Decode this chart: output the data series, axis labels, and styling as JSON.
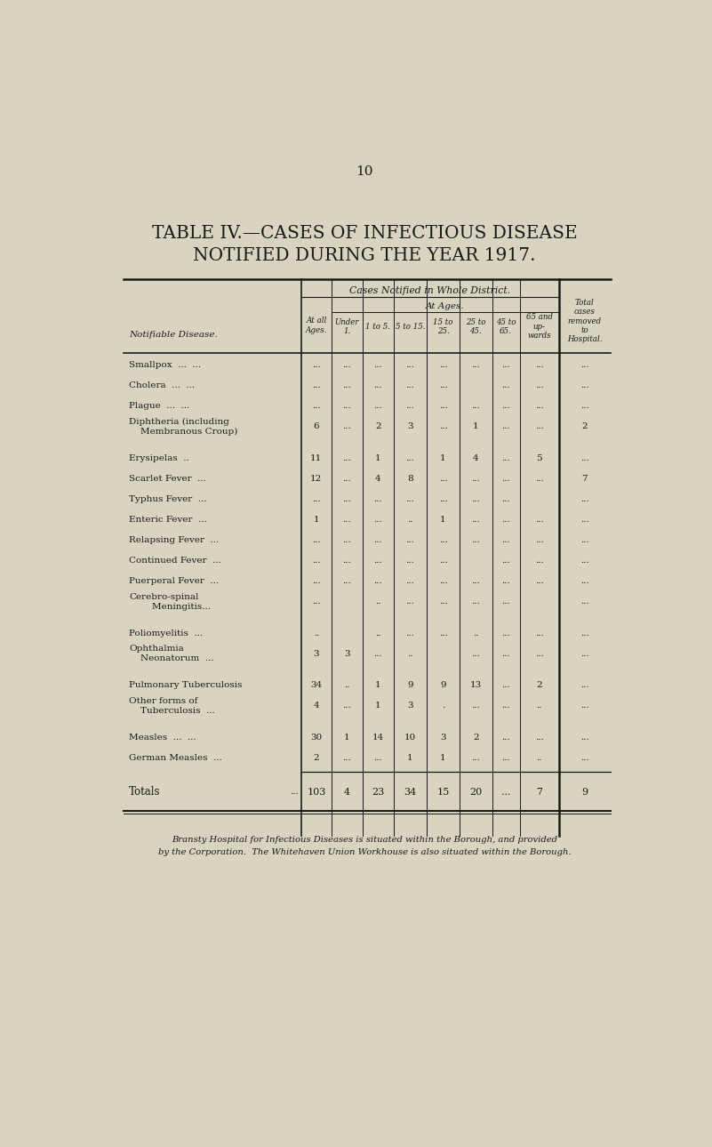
{
  "page_number": "10",
  "title_line1": "TABLE IV.—CASES OF INFECTIOUS DISEASE",
  "title_line2": "NOTIFIED DURING THE YEAR 1917.",
  "bg_color": "#d8d4c0",
  "text_color": "#1a1a1a",
  "header_group": "Cases Notified in Whole District.",
  "header_sub": "At Ages.",
  "rows": [
    [
      "Smallpox  ...  ...",
      "...",
      "...",
      "...",
      "...",
      "...",
      "...",
      "...",
      "...",
      "..."
    ],
    [
      "Cholera  ...  ...",
      "...",
      "...",
      "...",
      "...",
      "...",
      "",
      "...",
      "...",
      "..."
    ],
    [
      "Plague  ...  ...",
      "...",
      "...",
      "...",
      "...",
      "...",
      "...",
      "...",
      "...",
      "..."
    ],
    [
      "Diphtheria (including\n    Membranous Croup)",
      "6",
      "...",
      "2",
      "3",
      "...",
      "1",
      "...",
      "...",
      "2"
    ],
    [
      "Erysipelas  ..",
      "11",
      "...",
      "1",
      "...",
      "1",
      "4",
      "...",
      "5",
      "..."
    ],
    [
      "Scarlet Fever  ...",
      "12",
      "...",
      "4",
      "8",
      "...",
      "...",
      "...",
      "...",
      "7"
    ],
    [
      "Typhus Fever  ...",
      "...",
      "...",
      "...",
      "...",
      "...",
      "...",
      "...",
      "",
      "..."
    ],
    [
      "Enteric Fever  ...",
      "1",
      "...",
      "...",
      "..",
      "1",
      "...",
      "...",
      "...",
      "..."
    ],
    [
      "Relapsing Fever  ...",
      "...",
      "...",
      "...",
      "...",
      "...",
      "...",
      "...",
      "...",
      "..."
    ],
    [
      "Continued Fever  ...",
      "...",
      "...",
      "...",
      "...",
      "...",
      "",
      "...",
      "...",
      "..."
    ],
    [
      "Puerperal Fever  ...",
      "...",
      "...",
      "...",
      "...",
      "...",
      "...",
      "...",
      "...",
      "..."
    ],
    [
      "Cerebro-spinal\n        Meningitis...",
      "...",
      "",
      "..",
      "...",
      "...",
      "...",
      "...",
      "",
      "..."
    ],
    [
      "Poliomyelitis  ...",
      "..",
      "",
      "..",
      "...",
      "...",
      "..",
      "...",
      "...",
      "..."
    ],
    [
      "Ophthalmia\n    Neonatorum  ...",
      "3",
      "3",
      "...",
      "..",
      "",
      "...",
      "...",
      "...",
      "..."
    ],
    [
      "Pulmonary Tuberculosis",
      "34",
      "..",
      "1",
      "9",
      "9",
      "13",
      "...",
      "2",
      "..."
    ],
    [
      "Other forms of\n    Tuberculosis  ...",
      "4",
      "...",
      "1",
      "3",
      ".",
      "...",
      "...",
      "..",
      "..."
    ],
    [
      "Measles  ...  ...",
      "30",
      "1",
      "14",
      "10",
      "3",
      "2",
      "...",
      "...",
      "..."
    ],
    [
      "German Measles  ...",
      "2",
      "...",
      "...",
      "1",
      "1",
      "...",
      "...",
      "..",
      "..."
    ]
  ],
  "totals_row": [
    "Totals",
    "103",
    "4",
    "23",
    "34",
    "15",
    "20",
    "...",
    "7",
    "9"
  ],
  "footnote_line1": "Bransty Hospital for Infectious Diseases is situated within the Borough, and provided",
  "footnote_line2": "by the Corporation.  The Whitehaven Union Workhouse is also situated within the Borough."
}
